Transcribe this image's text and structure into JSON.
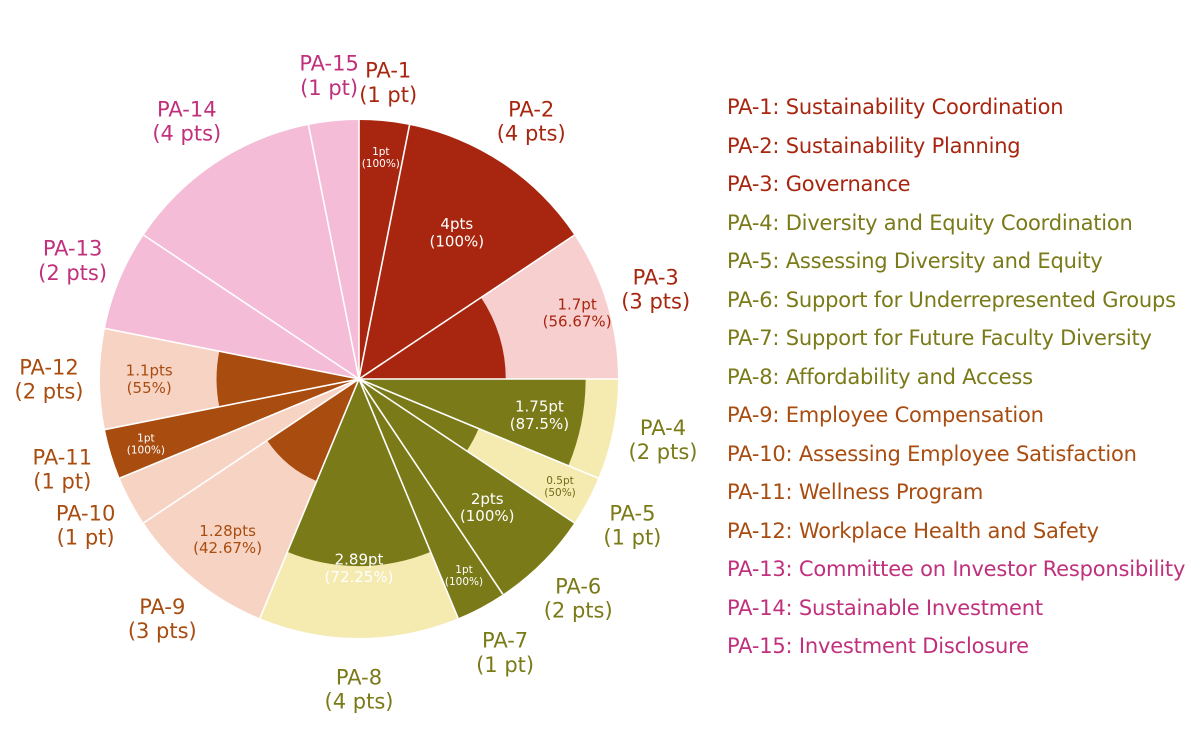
{
  "colors": {
    "red": "#a8260f",
    "red_light": "#f7cfcf",
    "olive": "#7a7a18",
    "olive_light": "#f5eab0",
    "orange": "#a84c10",
    "orange_light": "#f7d3c3",
    "pink": "#c0307d",
    "pink_light": "#f4bcd6"
  },
  "chart_data": {
    "type": "pie",
    "title": "",
    "slices": [
      {
        "id": "PA-1",
        "label": "PA-1",
        "pts_label": "(1 pt)",
        "possible": 1,
        "earned": 1,
        "value_label": "1pt",
        "pct_label": "(100%)",
        "group": "red"
      },
      {
        "id": "PA-2",
        "label": "PA-2",
        "pts_label": "(4 pts)",
        "possible": 4,
        "earned": 4,
        "value_label": "4pts",
        "pct_label": "(100%)",
        "group": "red"
      },
      {
        "id": "PA-3",
        "label": "PA-3",
        "pts_label": "(3 pts)",
        "possible": 3,
        "earned": 1.7,
        "value_label": "1.7pt",
        "pct_label": "(56.67%)",
        "group": "red"
      },
      {
        "id": "PA-4",
        "label": "PA-4",
        "pts_label": "(2 pts)",
        "possible": 2,
        "earned": 1.75,
        "value_label": "1.75pt",
        "pct_label": "(87.5%)",
        "group": "olive"
      },
      {
        "id": "PA-5",
        "label": "PA-5",
        "pts_label": "(1 pt)",
        "possible": 1,
        "earned": 0.5,
        "value_label": "0.5pt",
        "pct_label": "(50%)",
        "group": "olive"
      },
      {
        "id": "PA-6",
        "label": "PA-6",
        "pts_label": "(2 pts)",
        "possible": 2,
        "earned": 2,
        "value_label": "2pts",
        "pct_label": "(100%)",
        "group": "olive"
      },
      {
        "id": "PA-7",
        "label": "PA-7",
        "pts_label": "(1 pt)",
        "possible": 1,
        "earned": 1,
        "value_label": "1pt",
        "pct_label": "(100%)",
        "group": "olive"
      },
      {
        "id": "PA-8",
        "label": "PA-8",
        "pts_label": "(4 pts)",
        "possible": 4,
        "earned": 2.89,
        "value_label": "2.89pt",
        "pct_label": "(72.25%)",
        "group": "olive"
      },
      {
        "id": "PA-9",
        "label": "PA-9",
        "pts_label": "(3 pts)",
        "possible": 3,
        "earned": 1.28,
        "value_label": "1.28pts",
        "pct_label": "(42.67%)",
        "group": "orange"
      },
      {
        "id": "PA-10",
        "label": "PA-10",
        "pts_label": "(1 pt)",
        "possible": 1,
        "earned": 0,
        "value_label": "",
        "pct_label": "",
        "group": "orange"
      },
      {
        "id": "PA-11",
        "label": "PA-11",
        "pts_label": "(1 pt)",
        "possible": 1,
        "earned": 1,
        "value_label": "1pt",
        "pct_label": "(100%)",
        "group": "orange"
      },
      {
        "id": "PA-12",
        "label": "PA-12",
        "pts_label": "(2 pts)",
        "possible": 2,
        "earned": 1.1,
        "value_label": "1.1pts",
        "pct_label": "(55%)",
        "group": "orange"
      },
      {
        "id": "PA-13",
        "label": "PA-13",
        "pts_label": "(2 pts)",
        "possible": 2,
        "earned": 0,
        "value_label": "",
        "pct_label": "",
        "group": "pink"
      },
      {
        "id": "PA-14",
        "label": "PA-14",
        "pts_label": "(4 pts)",
        "possible": 4,
        "earned": 0,
        "value_label": "",
        "pct_label": "",
        "group": "pink"
      },
      {
        "id": "PA-15",
        "label": "PA-15",
        "pts_label": "(1 pt)",
        "possible": 1,
        "earned": 0,
        "value_label": "",
        "pct_label": "",
        "group": "pink"
      }
    ],
    "legend": [
      {
        "text": "PA-1: Sustainability Coordination",
        "group": "red"
      },
      {
        "text": "PA-2: Sustainability Planning",
        "group": "red"
      },
      {
        "text": "PA-3: Governance",
        "group": "red"
      },
      {
        "text": "PA-4: Diversity and Equity Coordination",
        "group": "olive"
      },
      {
        "text": "PA-5: Assessing Diversity and Equity",
        "group": "olive"
      },
      {
        "text": "PA-6: Support for Underrepresented Groups",
        "group": "olive"
      },
      {
        "text": "PA-7: Support for Future Faculty Diversity",
        "group": "olive"
      },
      {
        "text": "PA-8: Affordability and Access",
        "group": "olive"
      },
      {
        "text": "PA-9: Employee Compensation",
        "group": "orange"
      },
      {
        "text": "PA-10: Assessing Employee Satisfaction",
        "group": "orange"
      },
      {
        "text": "PA-11: Wellness Program",
        "group": "orange"
      },
      {
        "text": "PA-12: Workplace Health and Safety",
        "group": "orange"
      },
      {
        "text": "PA-13: Committee on Investor Responsibility",
        "group": "pink"
      },
      {
        "text": "PA-14: Sustainable Investment",
        "group": "pink"
      },
      {
        "text": "PA-15: Investment Disclosure",
        "group": "pink"
      }
    ]
  }
}
